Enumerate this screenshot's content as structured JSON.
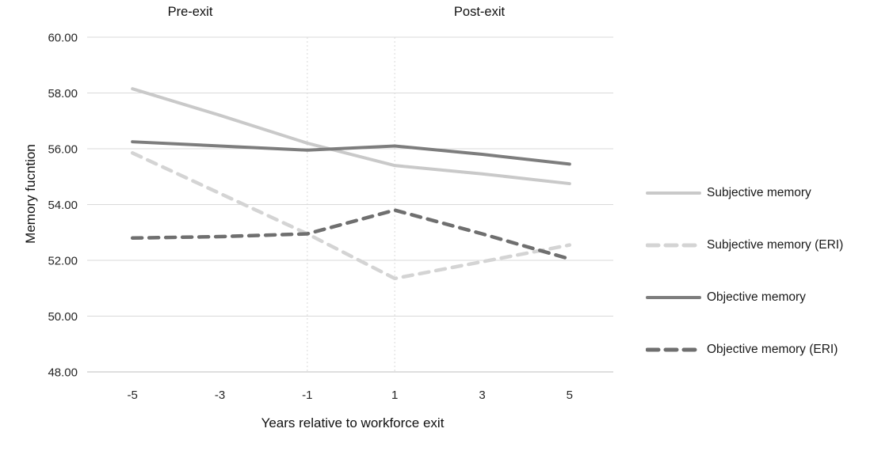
{
  "chart_data": {
    "type": "line",
    "title": "",
    "xlabel": "Years relative to workforce exit",
    "ylabel": "Memory fucntion",
    "categories": [
      -5,
      -3,
      -1,
      1,
      3,
      5
    ],
    "x_tick_labels": [
      "-5",
      "-3",
      "-1",
      "1",
      "3",
      "5"
    ],
    "y_ticks": [
      60,
      58,
      56,
      54,
      52,
      50,
      48
    ],
    "y_tick_labels": [
      "60.00",
      "58.00",
      "56.00",
      "54.00",
      "52.00",
      "50.00",
      "48.00"
    ],
    "ylim": [
      48,
      60
    ],
    "grid": "horizontal",
    "legend_position": "right",
    "reference_lines_x": [
      -1,
      1
    ],
    "annotations": [
      {
        "text": "Pre-exit",
        "region": "pre"
      },
      {
        "text": "Post-exit",
        "region": "post"
      }
    ],
    "series": [
      {
        "name": "Subjective memory",
        "style": "solid",
        "color": "#c9c9c9",
        "values": [
          58.15,
          57.2,
          56.2,
          55.4,
          55.1,
          54.75
        ]
      },
      {
        "name": "Subjective memory (ERI)",
        "style": "dashed",
        "color": "#d4d4d4",
        "values": [
          55.85,
          54.4,
          52.95,
          51.35,
          51.95,
          52.55
        ]
      },
      {
        "name": "Objective memory",
        "style": "solid",
        "color": "#7d7d7d",
        "values": [
          56.25,
          56.1,
          55.95,
          56.1,
          55.8,
          55.45
        ]
      },
      {
        "name": "Objective memory (ERI)",
        "style": "dashed",
        "color": "#6f6f6f",
        "values": [
          52.8,
          52.85,
          52.95,
          53.8,
          52.95,
          52.05
        ]
      }
    ]
  },
  "colors": {
    "background": "#ffffff",
    "gridline": "#d9d9d9",
    "axis_line": "#bfbfbf",
    "reference_line": "#d9d9d9",
    "tick_text": "#262626",
    "title_text": "#111111"
  }
}
